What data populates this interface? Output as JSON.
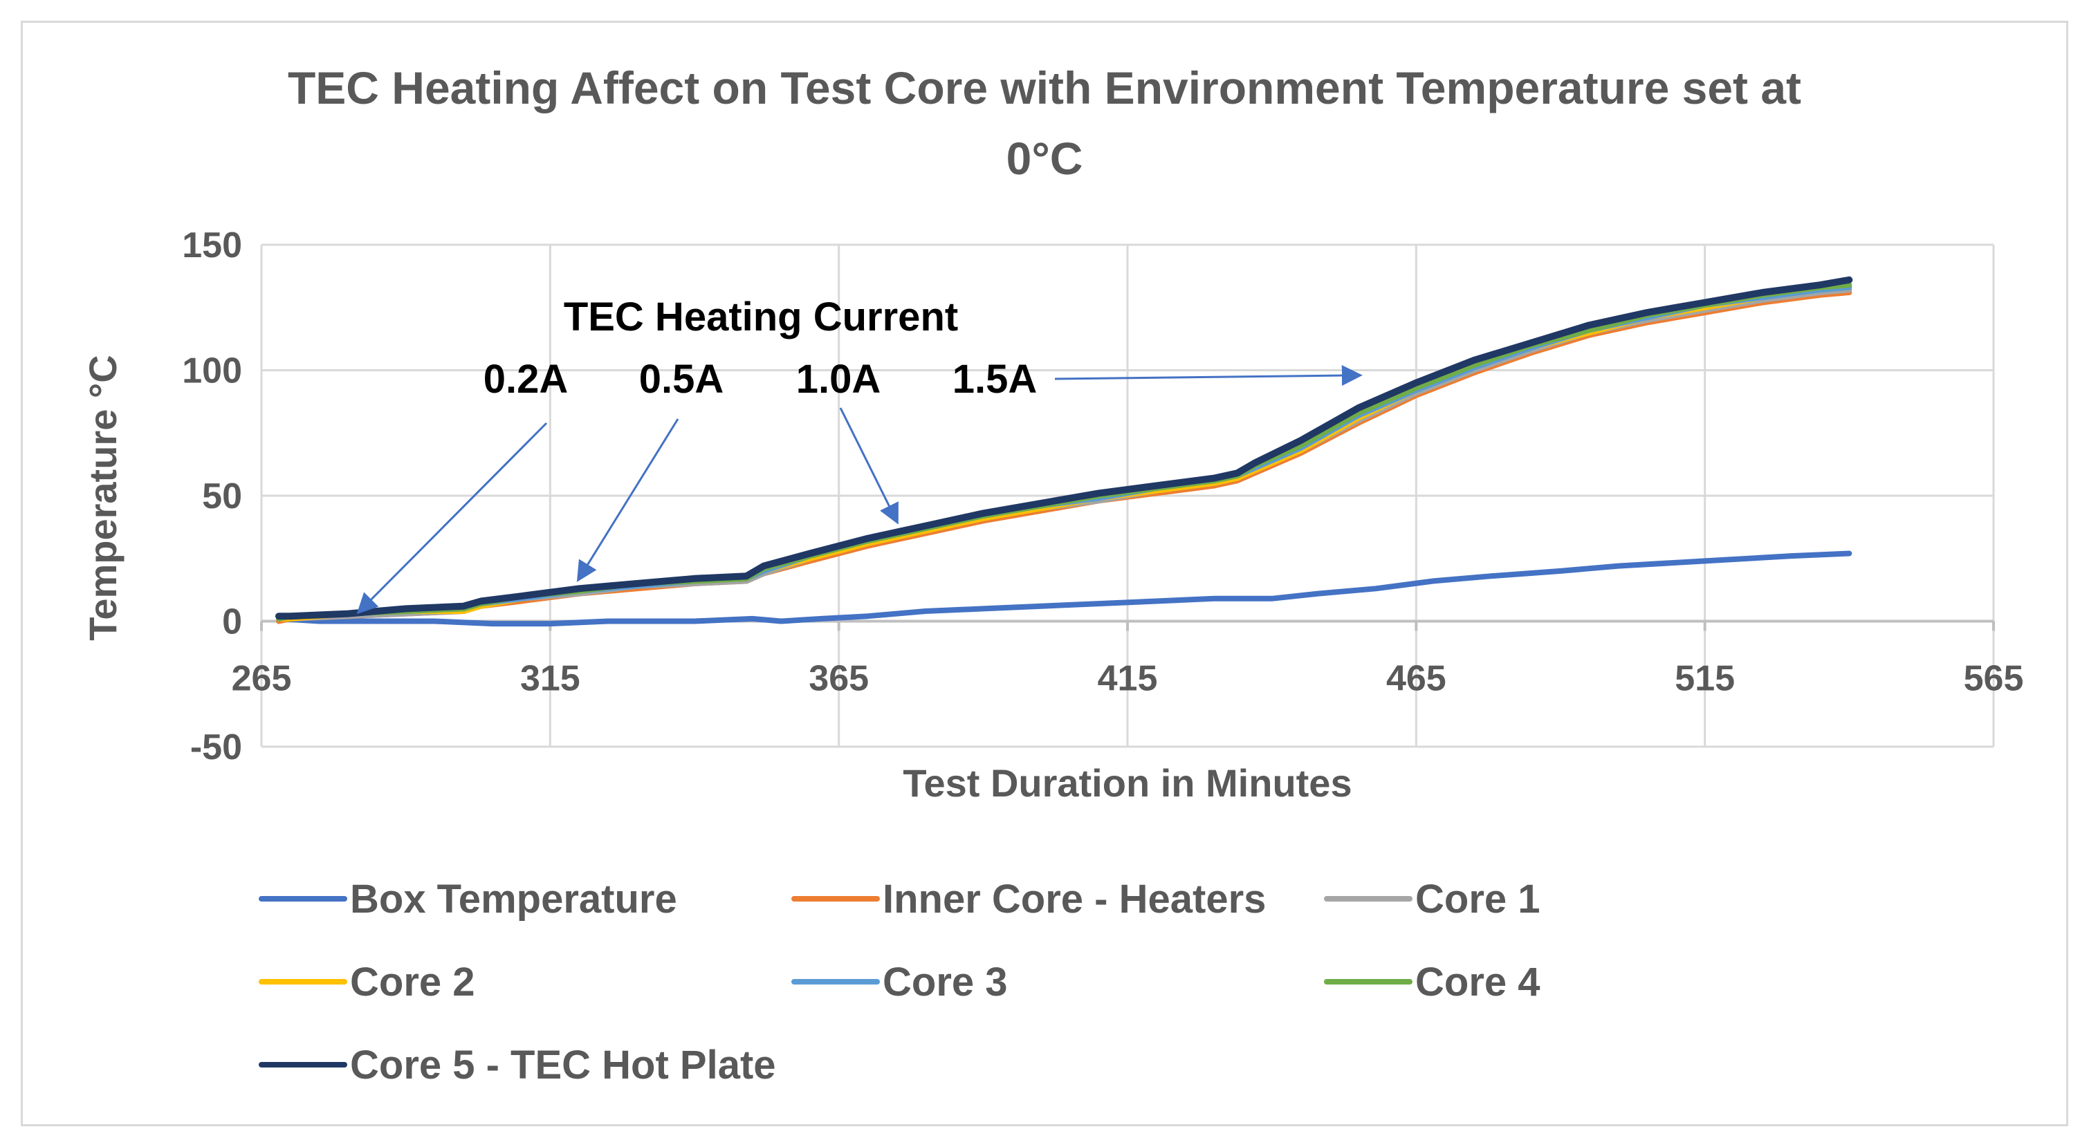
{
  "chart_data": {
    "type": "line",
    "title_lines": [
      "TEC Heating Affect on Test Core with Environment Temperature set at",
      "0°C"
    ],
    "xlabel": "Test Duration in Minutes",
    "ylabel": "Temperature °C",
    "xlim": [
      265,
      565
    ],
    "ylim": [
      -50,
      150
    ],
    "x_ticks": [
      265,
      315,
      365,
      415,
      465,
      515,
      565
    ],
    "y_ticks": [
      -50,
      0,
      50,
      100,
      150
    ],
    "grid": true,
    "legend_position": "bottom",
    "annotation_title": "TEC Heating Current",
    "current_labels": [
      {
        "label": "0.2A",
        "arrow_to": [
          282,
          4
        ]
      },
      {
        "label": "0.5A",
        "arrow_to": [
          320,
          17
        ]
      },
      {
        "label": "1.0A",
        "arrow_to": [
          375,
          40
        ]
      },
      {
        "label": "1.5A",
        "arrow_to": [
          455,
          98
        ]
      }
    ],
    "series": [
      {
        "name": "Box Temperature",
        "color": "#4472c4",
        "points": [
          [
            268,
            1
          ],
          [
            275,
            0
          ],
          [
            285,
            0
          ],
          [
            295,
            0
          ],
          [
            305,
            -1
          ],
          [
            315,
            -1
          ],
          [
            325,
            0
          ],
          [
            340,
            0
          ],
          [
            350,
            1
          ],
          [
            355,
            0
          ],
          [
            362,
            1
          ],
          [
            370,
            2
          ],
          [
            380,
            4
          ],
          [
            390,
            5
          ],
          [
            400,
            6
          ],
          [
            410,
            7
          ],
          [
            420,
            8
          ],
          [
            430,
            9
          ],
          [
            440,
            9
          ],
          [
            448,
            11
          ],
          [
            458,
            13
          ],
          [
            468,
            16
          ],
          [
            478,
            18
          ],
          [
            490,
            20
          ],
          [
            500,
            22
          ],
          [
            515,
            24
          ],
          [
            530,
            26
          ],
          [
            540,
            27
          ]
        ]
      },
      {
        "name": "Inner Core - Heaters",
        "color": "#ed7d31",
        "points": [
          [
            268,
            0
          ],
          [
            270,
            1
          ],
          [
            280,
            2
          ],
          [
            290,
            3
          ],
          [
            300,
            4
          ],
          [
            303,
            6
          ],
          [
            310,
            8
          ],
          [
            320,
            11
          ],
          [
            330,
            13
          ],
          [
            340,
            15
          ],
          [
            349,
            16
          ],
          [
            352,
            19
          ],
          [
            360,
            24
          ],
          [
            370,
            30
          ],
          [
            380,
            35
          ],
          [
            390,
            40
          ],
          [
            400,
            44
          ],
          [
            410,
            48
          ],
          [
            420,
            51
          ],
          [
            430,
            54
          ],
          [
            434,
            56
          ],
          [
            437,
            59
          ],
          [
            445,
            67
          ],
          [
            455,
            79
          ],
          [
            465,
            90
          ],
          [
            475,
            99
          ],
          [
            485,
            107
          ],
          [
            495,
            114
          ],
          [
            505,
            119
          ],
          [
            515,
            123
          ],
          [
            525,
            127
          ],
          [
            535,
            130
          ],
          [
            540,
            131
          ]
        ]
      },
      {
        "name": "Core 1",
        "color": "#a5a5a5",
        "points": [
          [
            268,
            1
          ],
          [
            270,
            1
          ],
          [
            280,
            2
          ],
          [
            290,
            3
          ],
          [
            300,
            4
          ],
          [
            303,
            6
          ],
          [
            310,
            9
          ],
          [
            320,
            11
          ],
          [
            330,
            14
          ],
          [
            340,
            15
          ],
          [
            349,
            16
          ],
          [
            352,
            19
          ],
          [
            360,
            25
          ],
          [
            370,
            31
          ],
          [
            380,
            36
          ],
          [
            390,
            41
          ],
          [
            400,
            45
          ],
          [
            410,
            48
          ],
          [
            420,
            52
          ],
          [
            430,
            55
          ],
          [
            434,
            57
          ],
          [
            437,
            60
          ],
          [
            445,
            68
          ],
          [
            455,
            80
          ],
          [
            465,
            91
          ],
          [
            475,
            100
          ],
          [
            485,
            108
          ],
          [
            495,
            115
          ],
          [
            505,
            120
          ],
          [
            515,
            124
          ],
          [
            525,
            128
          ],
          [
            535,
            131
          ],
          [
            540,
            132
          ]
        ]
      },
      {
        "name": "Core 2",
        "color": "#ffc000",
        "points": [
          [
            268,
            1
          ],
          [
            270,
            1
          ],
          [
            280,
            3
          ],
          [
            290,
            4
          ],
          [
            300,
            4
          ],
          [
            303,
            6
          ],
          [
            310,
            9
          ],
          [
            320,
            12
          ],
          [
            330,
            14
          ],
          [
            340,
            16
          ],
          [
            349,
            17
          ],
          [
            352,
            20
          ],
          [
            360,
            25
          ],
          [
            370,
            31
          ],
          [
            380,
            36
          ],
          [
            390,
            41
          ],
          [
            400,
            45
          ],
          [
            410,
            49
          ],
          [
            420,
            52
          ],
          [
            430,
            55
          ],
          [
            434,
            57
          ],
          [
            437,
            60
          ],
          [
            445,
            68
          ],
          [
            455,
            81
          ],
          [
            465,
            92
          ],
          [
            475,
            101
          ],
          [
            485,
            109
          ],
          [
            495,
            115
          ],
          [
            505,
            121
          ],
          [
            515,
            125
          ],
          [
            525,
            129
          ],
          [
            535,
            132
          ],
          [
            540,
            133
          ]
        ]
      },
      {
        "name": "Core 3",
        "color": "#5b9bd5",
        "points": [
          [
            268,
            1
          ],
          [
            270,
            2
          ],
          [
            280,
            3
          ],
          [
            290,
            4
          ],
          [
            300,
            5
          ],
          [
            303,
            7
          ],
          [
            310,
            9
          ],
          [
            320,
            12
          ],
          [
            330,
            14
          ],
          [
            340,
            16
          ],
          [
            349,
            17
          ],
          [
            352,
            20
          ],
          [
            360,
            26
          ],
          [
            370,
            32
          ],
          [
            380,
            37
          ],
          [
            390,
            42
          ],
          [
            400,
            46
          ],
          [
            410,
            49
          ],
          [
            420,
            53
          ],
          [
            430,
            56
          ],
          [
            434,
            58
          ],
          [
            437,
            61
          ],
          [
            445,
            69
          ],
          [
            455,
            82
          ],
          [
            465,
            92
          ],
          [
            475,
            101
          ],
          [
            485,
            109
          ],
          [
            495,
            116
          ],
          [
            505,
            121
          ],
          [
            515,
            126
          ],
          [
            525,
            129
          ],
          [
            535,
            132
          ],
          [
            540,
            133
          ]
        ]
      },
      {
        "name": "Core 4",
        "color": "#70ad47",
        "points": [
          [
            268,
            1
          ],
          [
            270,
            2
          ],
          [
            280,
            3
          ],
          [
            290,
            4
          ],
          [
            300,
            5
          ],
          [
            303,
            7
          ],
          [
            310,
            10
          ],
          [
            320,
            12
          ],
          [
            330,
            15
          ],
          [
            340,
            16
          ],
          [
            349,
            17
          ],
          [
            352,
            21
          ],
          [
            360,
            26
          ],
          [
            370,
            32
          ],
          [
            380,
            37
          ],
          [
            390,
            42
          ],
          [
            400,
            46
          ],
          [
            410,
            50
          ],
          [
            420,
            53
          ],
          [
            430,
            56
          ],
          [
            434,
            58
          ],
          [
            437,
            62
          ],
          [
            445,
            70
          ],
          [
            455,
            83
          ],
          [
            465,
            93
          ],
          [
            475,
            102
          ],
          [
            485,
            110
          ],
          [
            495,
            116
          ],
          [
            505,
            122
          ],
          [
            515,
            126
          ],
          [
            525,
            130
          ],
          [
            535,
            133
          ],
          [
            540,
            134
          ]
        ]
      },
      {
        "name": "Core 5 - TEC Hot Plate",
        "color": "#203864",
        "points": [
          [
            268,
            2
          ],
          [
            270,
            2
          ],
          [
            280,
            3
          ],
          [
            290,
            5
          ],
          [
            300,
            6
          ],
          [
            303,
            8
          ],
          [
            310,
            10
          ],
          [
            320,
            13
          ],
          [
            330,
            15
          ],
          [
            340,
            17
          ],
          [
            349,
            18
          ],
          [
            352,
            22
          ],
          [
            360,
            27
          ],
          [
            370,
            33
          ],
          [
            380,
            38
          ],
          [
            390,
            43
          ],
          [
            400,
            47
          ],
          [
            410,
            51
          ],
          [
            420,
            54
          ],
          [
            430,
            57
          ],
          [
            434,
            59
          ],
          [
            437,
            63
          ],
          [
            445,
            72
          ],
          [
            455,
            85
          ],
          [
            465,
            95
          ],
          [
            475,
            104
          ],
          [
            485,
            111
          ],
          [
            495,
            118
          ],
          [
            505,
            123
          ],
          [
            515,
            127
          ],
          [
            525,
            131
          ],
          [
            535,
            134
          ],
          [
            540,
            136
          ]
        ]
      }
    ]
  }
}
